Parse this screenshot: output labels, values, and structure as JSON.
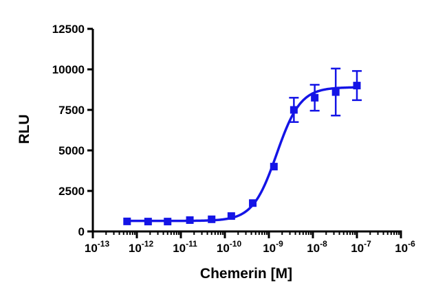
{
  "chart_data": {
    "type": "scatter",
    "title": "",
    "xlabel": "Chemerin [M]",
    "ylabel": "RLU",
    "x_scale": "log",
    "xlim": [
      1e-13,
      1e-06
    ],
    "ylim": [
      0,
      12500
    ],
    "x_ticks": [
      {
        "value": 1e-13,
        "base": "10",
        "exp": "-13"
      },
      {
        "value": 1e-12,
        "base": "10",
        "exp": "-12"
      },
      {
        "value": 1e-11,
        "base": "10",
        "exp": "-11"
      },
      {
        "value": 1e-10,
        "base": "10",
        "exp": "-10"
      },
      {
        "value": 1e-09,
        "base": "10",
        "exp": "-9"
      },
      {
        "value": 1e-08,
        "base": "10",
        "exp": "-8"
      },
      {
        "value": 1e-07,
        "base": "10",
        "exp": "-7"
      },
      {
        "value": 1e-06,
        "base": "10",
        "exp": "-6"
      }
    ],
    "y_ticks": [
      0,
      2500,
      5000,
      7500,
      10000,
      12500
    ],
    "y_tick_labels": [
      "0",
      "2500",
      "5000",
      "7500",
      "10000",
      "12500"
    ],
    "grid": false,
    "legend": "none",
    "series": [
      {
        "marker": "square",
        "color": "#1414e6",
        "points": [
          {
            "x": 6e-13,
            "y": 620,
            "err": 0
          },
          {
            "x": 1.8e-12,
            "y": 610,
            "err": 0
          },
          {
            "x": 5e-12,
            "y": 610,
            "err": 0
          },
          {
            "x": 1.6e-11,
            "y": 700,
            "err": 0
          },
          {
            "x": 5e-11,
            "y": 750,
            "err": 0
          },
          {
            "x": 1.4e-10,
            "y": 950,
            "err": 0
          },
          {
            "x": 4.3e-10,
            "y": 1750,
            "err": 0
          },
          {
            "x": 1.3e-09,
            "y": 4000,
            "err": 0
          },
          {
            "x": 3.7e-09,
            "y": 7500,
            "err": 750
          },
          {
            "x": 1.1e-08,
            "y": 8250,
            "err": 800
          },
          {
            "x": 3.3e-08,
            "y": 8600,
            "err": 1450
          },
          {
            "x": 1e-07,
            "y": 9000,
            "err": 900
          }
        ],
        "fit": {
          "model": "four-parameter logistic",
          "bottom": 650,
          "top": 8900,
          "ec50": 1.5e-09,
          "hill": 1.6
        }
      }
    ]
  }
}
